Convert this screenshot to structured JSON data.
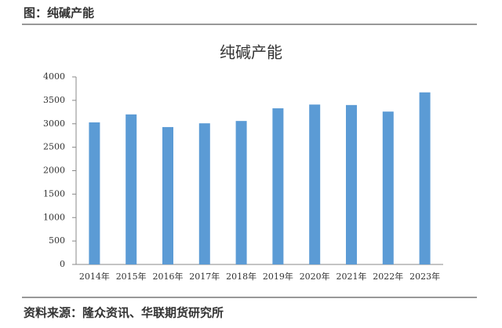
{
  "caption": "图：纯碱产能",
  "source": "资料来源：隆众资讯、华联期货研究所",
  "chart_data": {
    "type": "bar",
    "title": "纯碱产能",
    "categories": [
      "2014年",
      "2015年",
      "2016年",
      "2017年",
      "2018年",
      "2019年",
      "2020年",
      "2021年",
      "2022年",
      "2023年"
    ],
    "values": [
      3030,
      3200,
      2930,
      3010,
      3060,
      3330,
      3410,
      3400,
      3260,
      3670
    ],
    "color": "#5b9bd5",
    "ylim": [
      0,
      4000
    ],
    "yticks": [
      0,
      500,
      1000,
      1500,
      2000,
      2500,
      3000,
      3500,
      4000
    ],
    "grid": false
  }
}
